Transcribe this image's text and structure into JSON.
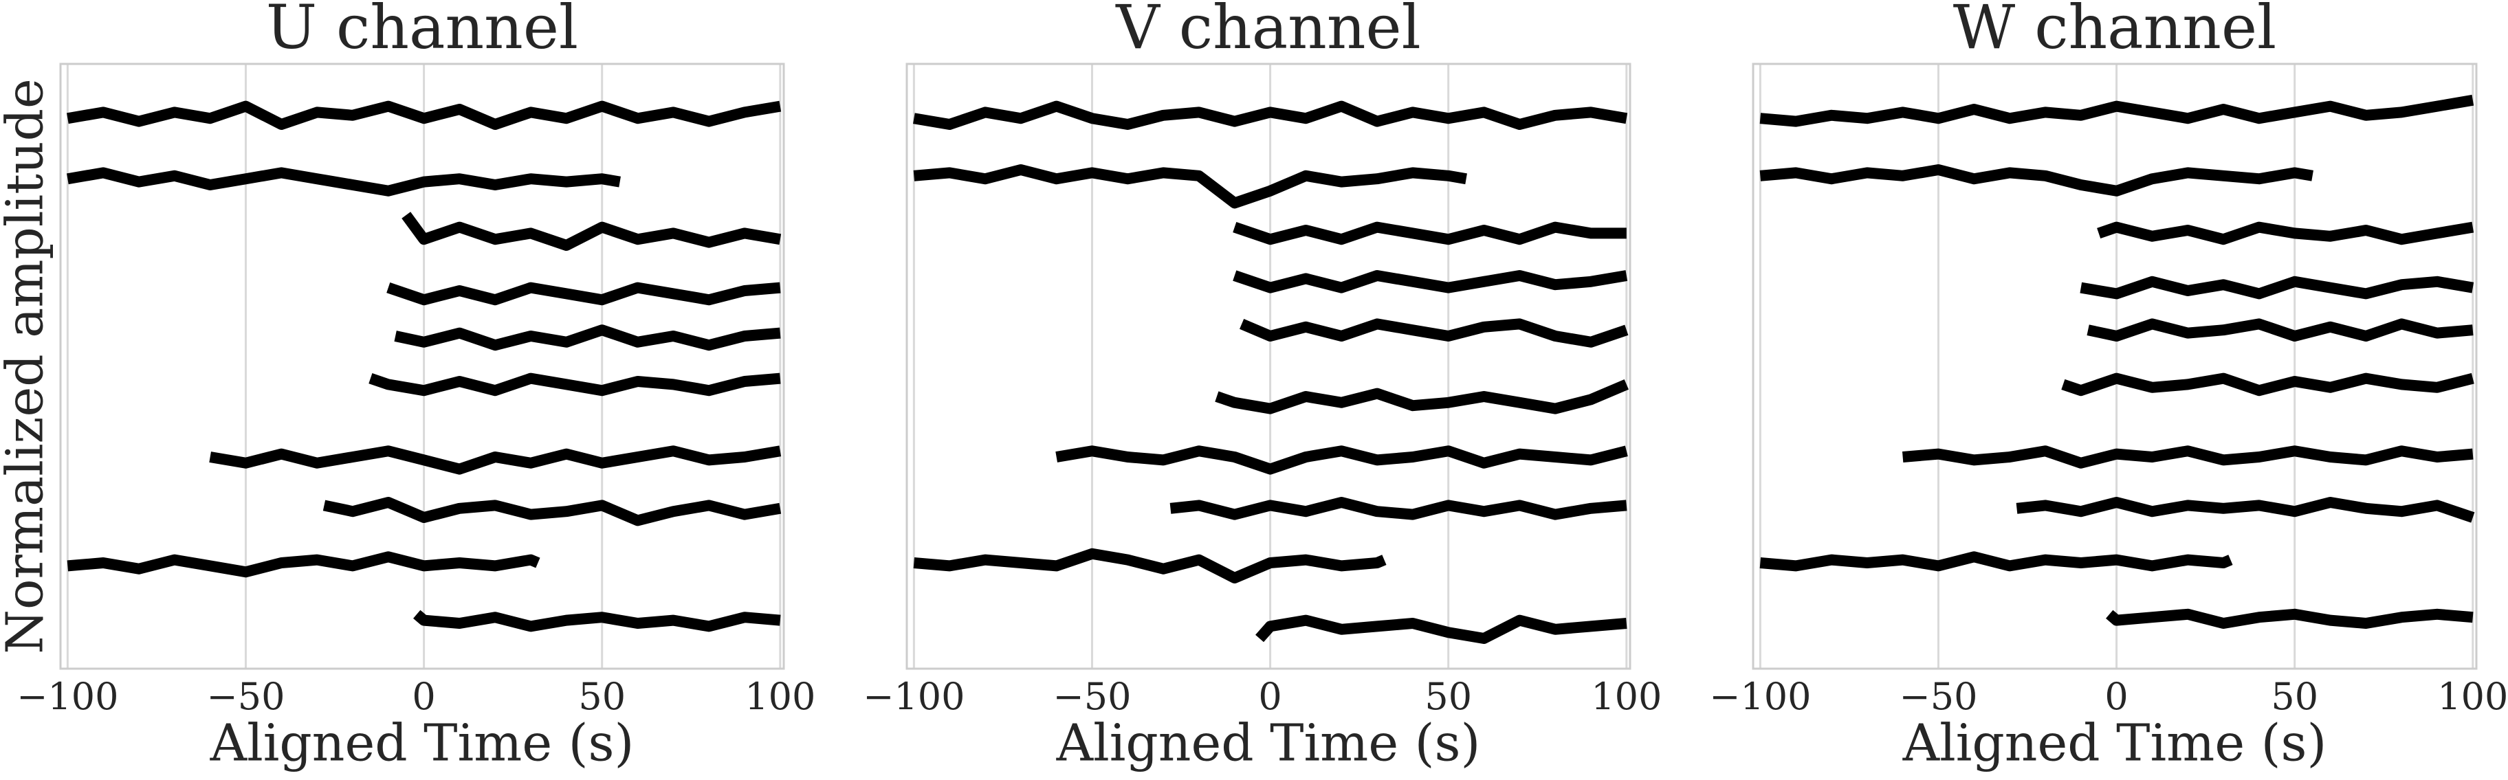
{
  "chart_data": [
    {
      "type": "line",
      "title": "U channel",
      "xlabel": "Aligned Time (s)",
      "ylabel": "Normalized amplitude",
      "xlim": [
        -102,
        101
      ],
      "ylim": [
        0,
        100
      ],
      "grid": true,
      "xticks": [
        {
          "value": -100,
          "label": "−100"
        },
        {
          "value": -50,
          "label": "−50"
        },
        0,
        50,
        100
      ],
      "series": [
        {
          "color": "#000000",
          "x": [
            -100,
            -90,
            -80,
            -70,
            -60,
            -50,
            -40,
            -30,
            -20,
            -10,
            0,
            10,
            20,
            30,
            40,
            50,
            60,
            70,
            80,
            90,
            100
          ],
          "values": [
            91,
            92,
            90.5,
            92,
            91,
            93,
            90,
            92,
            91.5,
            93,
            91,
            92.5,
            90,
            92,
            91,
            93,
            91,
            92,
            90.5,
            92,
            93
          ]
        },
        {
          "color": "#000000",
          "x": [
            -100,
            -90,
            -80,
            -70,
            -60,
            -50,
            -40,
            -30,
            -20,
            -10,
            0,
            10,
            20,
            30,
            40,
            50,
            55
          ],
          "values": [
            81,
            82,
            80.5,
            81.5,
            80,
            81,
            82,
            81,
            80,
            79,
            80.5,
            81,
            80,
            81,
            80.5,
            81,
            80.5
          ]
        },
        {
          "color": "#000000",
          "x": [
            -5,
            0,
            10,
            20,
            30,
            40,
            50,
            60,
            70,
            80,
            90,
            100
          ],
          "values": [
            75,
            71,
            73,
            71,
            72,
            70,
            73,
            71,
            72,
            70.5,
            72,
            71
          ]
        },
        {
          "color": "#000000",
          "x": [
            -10,
            0,
            10,
            20,
            30,
            40,
            50,
            60,
            70,
            80,
            90,
            100
          ],
          "values": [
            63,
            61,
            62.5,
            61,
            63,
            62,
            61,
            63,
            62,
            61,
            62.5,
            63
          ]
        },
        {
          "color": "#000000",
          "x": [
            -8,
            0,
            10,
            20,
            30,
            40,
            50,
            60,
            70,
            80,
            90,
            100
          ],
          "values": [
            55,
            54,
            55.5,
            53.5,
            55,
            54,
            56,
            54,
            55,
            53.5,
            55,
            55.5
          ]
        },
        {
          "color": "#000000",
          "x": [
            -15,
            -10,
            0,
            10,
            20,
            30,
            40,
            50,
            60,
            70,
            80,
            90,
            100
          ],
          "values": [
            48,
            47,
            46,
            47.5,
            46,
            48,
            47,
            46,
            47.5,
            47,
            46,
            47.5,
            48
          ]
        },
        {
          "color": "#000000",
          "x": [
            -60,
            -50,
            -40,
            -30,
            -20,
            -10,
            0,
            10,
            20,
            30,
            40,
            50,
            60,
            70,
            80,
            90,
            100
          ],
          "values": [
            35,
            34,
            35.5,
            34,
            35,
            36,
            34.5,
            33,
            35,
            34,
            35.5,
            34,
            35,
            36,
            34.5,
            35,
            36
          ]
        },
        {
          "color": "#000000",
          "x": [
            -28,
            -20,
            -10,
            0,
            10,
            20,
            30,
            40,
            50,
            60,
            70,
            80,
            90,
            100
          ],
          "values": [
            27,
            26,
            27.5,
            25,
            26.5,
            27,
            25.5,
            26,
            27,
            24.5,
            26,
            27,
            25.5,
            26.5
          ]
        },
        {
          "color": "#000000",
          "x": [
            -100,
            -90,
            -80,
            -70,
            -60,
            -50,
            -40,
            -30,
            -20,
            -10,
            0,
            10,
            20,
            30,
            32
          ],
          "values": [
            17,
            17.5,
            16.5,
            18,
            17,
            16,
            17.5,
            18,
            17,
            18.5,
            17,
            17.5,
            17,
            18,
            17.5
          ]
        },
        {
          "color": "#000000",
          "x": [
            -2,
            0,
            10,
            20,
            30,
            40,
            50,
            60,
            70,
            80,
            90,
            100
          ],
          "values": [
            9,
            8,
            7.5,
            8.5,
            7,
            8,
            8.5,
            7.5,
            8,
            7,
            8.5,
            8
          ]
        }
      ]
    },
    {
      "type": "line",
      "title": "V channel",
      "xlabel": "Aligned Time (s)",
      "xlim": [
        -102,
        101
      ],
      "ylim": [
        0,
        100
      ],
      "grid": true,
      "xticks": [
        {
          "value": -100,
          "label": "−100"
        },
        {
          "value": -50,
          "label": "−50"
        },
        0,
        50,
        100
      ],
      "series": [
        {
          "color": "#000000",
          "x": [
            -100,
            -90,
            -80,
            -70,
            -60,
            -50,
            -40,
            -30,
            -20,
            -10,
            0,
            10,
            20,
            30,
            40,
            50,
            60,
            70,
            80,
            90,
            100
          ],
          "values": [
            91,
            90,
            92,
            91,
            93,
            91,
            90,
            91.5,
            92,
            90.5,
            92,
            91,
            93,
            90.5,
            92,
            91,
            92,
            90,
            91.5,
            92,
            91
          ]
        },
        {
          "color": "#000000",
          "x": [
            -100,
            -90,
            -80,
            -70,
            -60,
            -50,
            -40,
            -30,
            -20,
            -10,
            0,
            10,
            20,
            30,
            40,
            50,
            55
          ],
          "values": [
            81.5,
            82,
            81,
            82.5,
            81,
            82,
            81,
            82,
            81.5,
            77,
            79,
            81.5,
            80.5,
            81,
            82,
            81.5,
            81
          ]
        },
        {
          "color": "#000000",
          "x": [
            -10,
            0,
            10,
            20,
            30,
            40,
            50,
            60,
            70,
            80,
            90,
            100
          ],
          "values": [
            73,
            71,
            72.5,
            71,
            73,
            72,
            71,
            72.5,
            71,
            73,
            72,
            72
          ]
        },
        {
          "color": "#000000",
          "x": [
            -10,
            0,
            10,
            20,
            30,
            40,
            50,
            60,
            70,
            80,
            90,
            100
          ],
          "values": [
            65,
            63,
            64.5,
            63,
            65,
            64,
            63,
            64,
            65,
            63.5,
            64,
            65
          ]
        },
        {
          "color": "#000000",
          "x": [
            -8,
            0,
            10,
            20,
            30,
            40,
            50,
            60,
            70,
            80,
            90,
            100
          ],
          "values": [
            57,
            55,
            56.5,
            55,
            57,
            56,
            55,
            56.5,
            57,
            55,
            54,
            56
          ]
        },
        {
          "color": "#000000",
          "x": [
            -15,
            -10,
            0,
            10,
            20,
            30,
            40,
            50,
            60,
            70,
            80,
            90,
            100
          ],
          "values": [
            45,
            44,
            43,
            45,
            44,
            45.5,
            43.5,
            44,
            45,
            44,
            43,
            44.5,
            47
          ]
        },
        {
          "color": "#000000",
          "x": [
            -60,
            -50,
            -40,
            -30,
            -20,
            -10,
            0,
            10,
            20,
            30,
            40,
            50,
            60,
            70,
            80,
            90,
            100
          ],
          "values": [
            35,
            36,
            35,
            34.5,
            36,
            35,
            33,
            35,
            36,
            34.5,
            35,
            36,
            34,
            35.5,
            35,
            34.5,
            36
          ]
        },
        {
          "color": "#000000",
          "x": [
            -28,
            -20,
            -10,
            0,
            10,
            20,
            30,
            40,
            50,
            60,
            70,
            80,
            90,
            100
          ],
          "values": [
            26.5,
            27,
            25.5,
            27,
            26,
            27.5,
            26,
            25.5,
            27,
            26,
            27,
            25.5,
            26.5,
            27
          ]
        },
        {
          "color": "#000000",
          "x": [
            -100,
            -90,
            -80,
            -70,
            -60,
            -50,
            -40,
            -30,
            -20,
            -10,
            0,
            10,
            20,
            30,
            32
          ],
          "values": [
            17.5,
            17,
            18,
            17.5,
            17,
            19,
            18,
            16.5,
            18,
            15,
            17.5,
            18,
            17,
            17.5,
            18
          ]
        },
        {
          "color": "#000000",
          "x": [
            -3,
            0,
            10,
            20,
            30,
            40,
            50,
            60,
            70,
            80,
            90,
            100
          ],
          "values": [
            5,
            7,
            8,
            6.5,
            7,
            7.5,
            6,
            5,
            8,
            6.5,
            7,
            7.5
          ]
        }
      ]
    },
    {
      "type": "line",
      "title": "W channel",
      "xlabel": "Aligned Time (s)",
      "xlim": [
        -102,
        101
      ],
      "ylim": [
        0,
        100
      ],
      "grid": true,
      "xticks": [
        {
          "value": -100,
          "label": "−100"
        },
        {
          "value": -50,
          "label": "−50"
        },
        0,
        50,
        100
      ],
      "series": [
        {
          "color": "#000000",
          "x": [
            -100,
            -90,
            -80,
            -70,
            -60,
            -50,
            -40,
            -30,
            -20,
            -10,
            0,
            10,
            20,
            30,
            40,
            50,
            60,
            70,
            80,
            90,
            100
          ],
          "values": [
            91,
            90.5,
            91.5,
            91,
            92,
            91,
            92.5,
            91,
            92,
            91.5,
            93,
            92,
            91,
            92.5,
            91,
            92,
            93,
            91.5,
            92,
            93,
            94
          ]
        },
        {
          "color": "#000000",
          "x": [
            -100,
            -90,
            -80,
            -70,
            -60,
            -50,
            -40,
            -30,
            -20,
            -10,
            0,
            10,
            20,
            30,
            40,
            50,
            55
          ],
          "values": [
            81.5,
            82,
            81,
            82,
            81.5,
            82.5,
            81,
            82,
            81.5,
            80,
            79,
            81,
            82,
            81.5,
            81,
            82,
            81.5
          ]
        },
        {
          "color": "#000000",
          "x": [
            -5,
            0,
            10,
            20,
            30,
            40,
            50,
            60,
            70,
            80,
            90,
            100
          ],
          "values": [
            72,
            73,
            71.5,
            72.5,
            71,
            73,
            72,
            71.5,
            72.5,
            71,
            72,
            73
          ]
        },
        {
          "color": "#000000",
          "x": [
            -10,
            0,
            10,
            20,
            30,
            40,
            50,
            60,
            70,
            80,
            90,
            100
          ],
          "values": [
            63,
            62,
            64,
            62.5,
            63.5,
            62,
            64,
            63,
            62,
            63.5,
            64,
            63
          ]
        },
        {
          "color": "#000000",
          "x": [
            -8,
            0,
            10,
            20,
            30,
            40,
            50,
            60,
            70,
            80,
            90,
            100
          ],
          "values": [
            56,
            55,
            57,
            55.5,
            56,
            57,
            55,
            56.5,
            55,
            57,
            55.5,
            56
          ]
        },
        {
          "color": "#000000",
          "x": [
            -15,
            -10,
            0,
            10,
            20,
            30,
            40,
            50,
            60,
            70,
            80,
            90,
            100
          ],
          "values": [
            47,
            46,
            48,
            46.5,
            47,
            48,
            46,
            47.5,
            46.5,
            48,
            47,
            46.5,
            48
          ]
        },
        {
          "color": "#000000",
          "x": [
            -60,
            -50,
            -40,
            -30,
            -20,
            -10,
            0,
            10,
            20,
            30,
            40,
            50,
            60,
            70,
            80,
            90,
            100
          ],
          "values": [
            35,
            35.5,
            34.5,
            35,
            36,
            34,
            35.5,
            35,
            36,
            34.5,
            35,
            36,
            35,
            34.5,
            36,
            35,
            35.5
          ]
        },
        {
          "color": "#000000",
          "x": [
            -28,
            -20,
            -10,
            0,
            10,
            20,
            30,
            40,
            50,
            60,
            70,
            80,
            90,
            100
          ],
          "values": [
            26.5,
            27,
            26,
            27.5,
            26,
            27,
            26.5,
            27,
            26,
            27.5,
            26.5,
            26,
            27,
            25
          ]
        },
        {
          "color": "#000000",
          "x": [
            -100,
            -90,
            -80,
            -70,
            -60,
            -50,
            -40,
            -30,
            -20,
            -10,
            0,
            10,
            20,
            30,
            32
          ],
          "values": [
            17.5,
            17,
            18,
            17.5,
            18,
            17,
            18.5,
            17,
            18,
            17.5,
            18,
            17,
            18,
            17.5,
            18
          ]
        },
        {
          "color": "#000000",
          "x": [
            -2,
            0,
            10,
            20,
            30,
            40,
            50,
            60,
            70,
            80,
            90,
            100
          ],
          "values": [
            9,
            8,
            8.5,
            9,
            7.5,
            8.5,
            9,
            8,
            7.5,
            8.5,
            9,
            8.5
          ]
        }
      ]
    }
  ]
}
